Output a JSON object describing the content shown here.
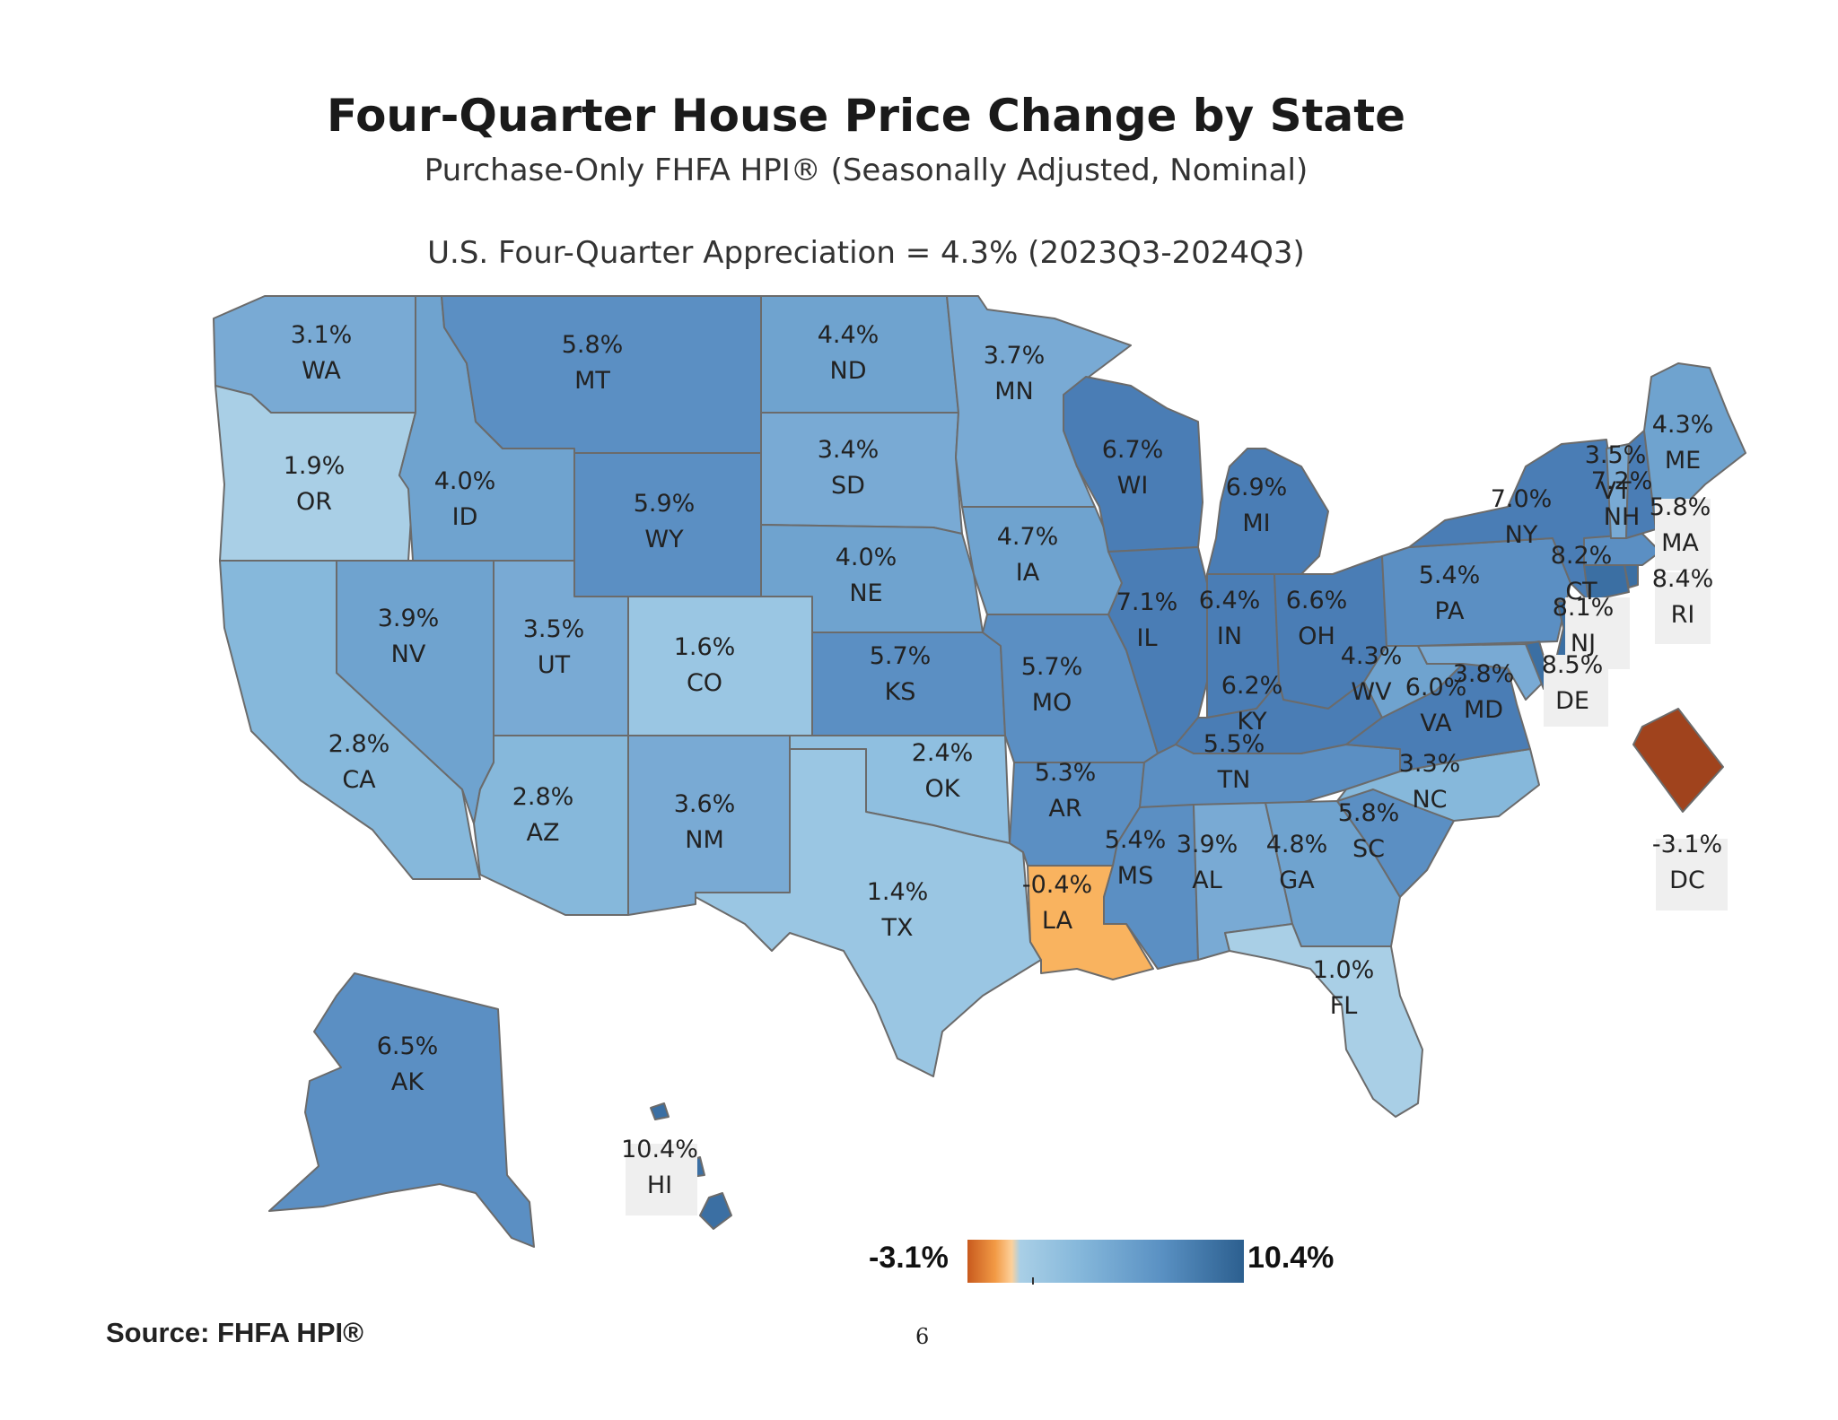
{
  "title": "Four-Quarter House Price Change by State",
  "subtitle": "Purchase-Only FHFA HPI® (Seasonally Adjusted, Nominal)",
  "us_note": "U.S. Four-Quarter Appreciation = 4.3% (2023Q3-2024Q3)",
  "legend": {
    "min": "-3.1%",
    "max": "10.4%"
  },
  "source": "Source:   FHFA HPI®",
  "page_number": "6",
  "colors": {
    "lowest": "#a0431d",
    "negative": "#f9b35f",
    "low": "#a9cfe6",
    "mid": "#6fa3cf",
    "high": "#3b6fa3"
  },
  "states": {
    "WA": {
      "value": "3.1%",
      "abbr": "WA"
    },
    "OR": {
      "value": "1.9%",
      "abbr": "OR"
    },
    "CA": {
      "value": "2.8%",
      "abbr": "CA"
    },
    "NV": {
      "value": "3.9%",
      "abbr": "NV"
    },
    "ID": {
      "value": "4.0%",
      "abbr": "ID"
    },
    "MT": {
      "value": "5.8%",
      "abbr": "MT"
    },
    "WY": {
      "value": "5.9%",
      "abbr": "WY"
    },
    "UT": {
      "value": "3.5%",
      "abbr": "UT"
    },
    "CO": {
      "value": "1.6%",
      "abbr": "CO"
    },
    "AZ": {
      "value": "2.8%",
      "abbr": "AZ"
    },
    "NM": {
      "value": "3.6%",
      "abbr": "NM"
    },
    "ND": {
      "value": "4.4%",
      "abbr": "ND"
    },
    "SD": {
      "value": "3.4%",
      "abbr": "SD"
    },
    "NE": {
      "value": "4.0%",
      "abbr": "NE"
    },
    "KS": {
      "value": "5.7%",
      "abbr": "KS"
    },
    "OK": {
      "value": "2.4%",
      "abbr": "OK"
    },
    "TX": {
      "value": "1.4%",
      "abbr": "TX"
    },
    "MN": {
      "value": "3.7%",
      "abbr": "MN"
    },
    "IA": {
      "value": "4.7%",
      "abbr": "IA"
    },
    "MO": {
      "value": "5.7%",
      "abbr": "MO"
    },
    "AR": {
      "value": "5.3%",
      "abbr": "AR"
    },
    "LA": {
      "value": "-0.4%",
      "abbr": "LA"
    },
    "WI": {
      "value": "6.7%",
      "abbr": "WI"
    },
    "IL": {
      "value": "7.1%",
      "abbr": "IL"
    },
    "MI": {
      "value": "6.9%",
      "abbr": "MI"
    },
    "IN": {
      "value": "6.4%",
      "abbr": "IN"
    },
    "OH": {
      "value": "6.6%",
      "abbr": "OH"
    },
    "KY": {
      "value": "6.2%",
      "abbr": "KY"
    },
    "TN": {
      "value": "5.5%",
      "abbr": "TN"
    },
    "MS": {
      "value": "5.4%",
      "abbr": "MS"
    },
    "AL": {
      "value": "3.9%",
      "abbr": "AL"
    },
    "GA": {
      "value": "4.8%",
      "abbr": "GA"
    },
    "FL": {
      "value": "1.0%",
      "abbr": "FL"
    },
    "SC": {
      "value": "5.8%",
      "abbr": "SC"
    },
    "NC": {
      "value": "3.3%",
      "abbr": "NC"
    },
    "VA": {
      "value": "6.0%",
      "abbr": "VA"
    },
    "WV": {
      "value": "4.3%",
      "abbr": "WV"
    },
    "PA": {
      "value": "5.4%",
      "abbr": "PA"
    },
    "NY": {
      "value": "7.0%",
      "abbr": "NY"
    },
    "VT": {
      "value": "3.5%",
      "abbr": "VT"
    },
    "NH": {
      "value": "7.2%",
      "abbr": "NH"
    },
    "ME": {
      "value": "4.3%",
      "abbr": "ME"
    },
    "MA": {
      "value": "5.8%",
      "abbr": "MA"
    },
    "RI": {
      "value": "8.4%",
      "abbr": "RI"
    },
    "CT": {
      "value": "8.2%",
      "abbr": "CT"
    },
    "NJ": {
      "value": "8.1%",
      "abbr": "NJ"
    },
    "DE": {
      "value": "8.5%",
      "abbr": "DE"
    },
    "MD": {
      "value": "3.8%",
      "abbr": "MD"
    },
    "DC": {
      "value": "-3.1%",
      "abbr": "DC"
    },
    "AK": {
      "value": "6.5%",
      "abbr": "AK"
    },
    "HI": {
      "value": "10.4%",
      "abbr": "HI"
    }
  }
}
